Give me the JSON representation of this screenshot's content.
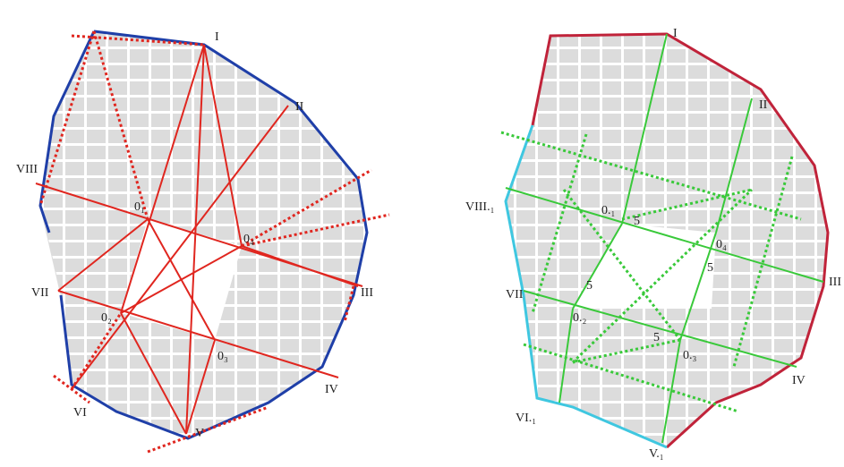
{
  "left": {
    "labels": [
      "I",
      "II",
      "VIII",
      "0₁",
      "0₄",
      "III",
      "VII",
      "0₂",
      "0₃",
      "IV",
      "VI",
      "V"
    ]
  },
  "right": {
    "labels": [
      "I",
      "II",
      "VIII.₁",
      "0.₁",
      "5",
      "0₄",
      "5",
      "III",
      "VII",
      "5",
      "0.₂",
      "5",
      "0.₃",
      "IV",
      "VI.₁",
      "V.₁"
    ]
  }
}
